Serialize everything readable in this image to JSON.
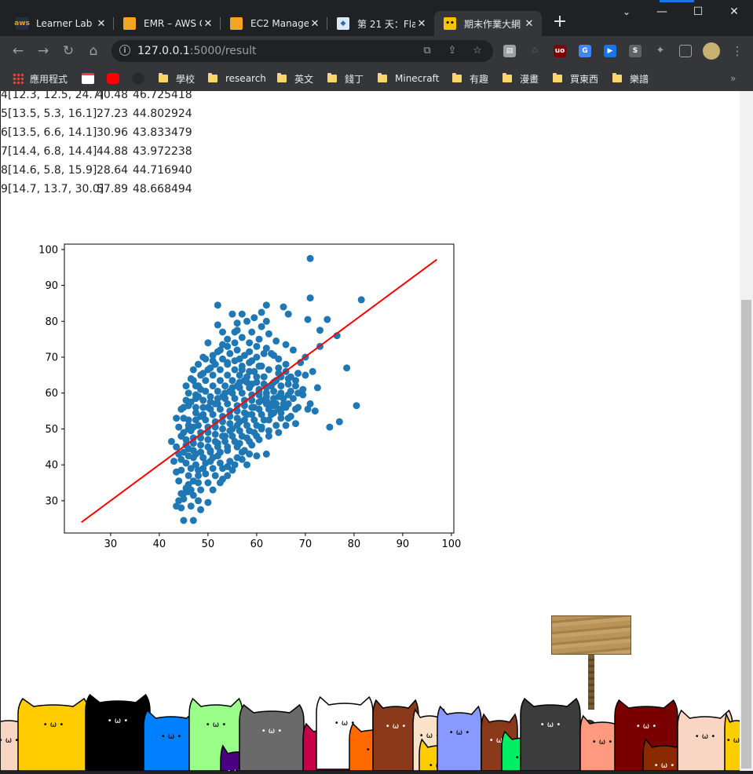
{
  "browser": {
    "tabs": [
      {
        "title": "Learner Lab",
        "icon": "aws-icon",
        "active": false
      },
      {
        "title": "EMR – AWS C",
        "icon": "box-icon",
        "active": false
      },
      {
        "title": "EC2 Manage",
        "icon": "box-icon",
        "active": false
      },
      {
        "title": "第 21 天：Fla",
        "icon": "flask-icon",
        "active": false
      },
      {
        "title": "期末作業大網",
        "icon": "folder-icon",
        "active": true
      }
    ],
    "new_tab": "+",
    "window": {
      "minimize": "—",
      "maximize": "☐",
      "close": "✕"
    },
    "address": {
      "host": "127.0.0.1",
      "path": ":5000/result"
    },
    "bookmarks": [
      {
        "label": "應用程式",
        "icon": "apps-grid-icon"
      },
      {
        "label": "",
        "icon": "gmail-icon"
      },
      {
        "label": "",
        "icon": "youtube-icon"
      },
      {
        "label": "",
        "icon": "github-icon"
      },
      {
        "label": "學校",
        "icon": "folder-icon"
      },
      {
        "label": "research",
        "icon": "folder-icon"
      },
      {
        "label": "英文",
        "icon": "folder-icon"
      },
      {
        "label": "錢丁",
        "icon": "folder-icon"
      },
      {
        "label": "Minecraft",
        "icon": "folder-icon"
      },
      {
        "label": "有趣",
        "icon": "folder-icon"
      },
      {
        "label": "漫畫",
        "icon": "folder-icon"
      },
      {
        "label": "買東西",
        "icon": "folder-icon"
      },
      {
        "label": "樂譜",
        "icon": "folder-icon"
      }
    ],
    "bookmarks_overflow": "»"
  },
  "table_rows": [
    {
      "idx": "4",
      "features": "[12.3, 12.5, 24.7]",
      "actual": "40.48",
      "pred": "46.725418"
    },
    {
      "idx": "5",
      "features": "[13.5, 5.3, 16.1]",
      "actual": "27.23",
      "pred": "44.802924"
    },
    {
      "idx": "6",
      "features": "[13.5, 6.6, 14.1]",
      "actual": "30.96",
      "pred": "43.833479"
    },
    {
      "idx": "7",
      "features": "[14.4, 6.8, 14.4]",
      "actual": "44.88",
      "pred": "43.972238"
    },
    {
      "idx": "8",
      "features": "[14.6, 5.8, 15.9]",
      "actual": "28.64",
      "pred": "44.716940"
    },
    {
      "idx": "9",
      "features": "[14.7, 13.7, 30.0]",
      "actual": "57.89",
      "pred": "48.668494"
    }
  ],
  "chart_data": {
    "type": "scatter",
    "xlim": [
      20.5,
      100.5
    ],
    "ylim": [
      21,
      101.5
    ],
    "xticks": [
      30,
      40,
      50,
      60,
      70,
      80,
      90,
      100
    ],
    "yticks": [
      30,
      40,
      50,
      60,
      70,
      80,
      90,
      100
    ],
    "grid": false,
    "point_color": "#1f77b4",
    "line_color": "#ff0000",
    "fit_line": {
      "x": [
        24,
        97
      ],
      "y": [
        24,
        97.2
      ]
    },
    "points": [
      [
        71,
        97.5
      ],
      [
        81.5,
        86
      ],
      [
        71,
        86.5
      ],
      [
        52,
        84.5
      ],
      [
        62,
        84.5
      ],
      [
        65.5,
        84
      ],
      [
        74.5,
        80.5
      ],
      [
        70.5,
        80.5
      ],
      [
        66.5,
        82
      ],
      [
        73,
        77.5
      ],
      [
        76.5,
        76
      ],
      [
        78.5,
        67
      ],
      [
        80.5,
        56.5
      ],
      [
        77,
        52
      ],
      [
        75,
        50.5
      ],
      [
        72.5,
        61.5
      ],
      [
        71.5,
        66
      ],
      [
        70,
        70
      ],
      [
        73,
        73
      ],
      [
        67,
        64.5
      ],
      [
        69.5,
        59.5
      ],
      [
        71,
        57
      ],
      [
        64.5,
        59
      ],
      [
        63,
        57
      ],
      [
        62,
        43
      ],
      [
        58,
        40
      ],
      [
        57,
        43.5
      ],
      [
        55,
        38.5
      ],
      [
        53,
        36
      ],
      [
        50,
        29.5
      ],
      [
        48.5,
        27.5
      ],
      [
        47,
        24.5
      ],
      [
        45,
        24.5
      ],
      [
        44.5,
        28
      ],
      [
        43.5,
        28.5
      ],
      [
        45,
        30.5
      ],
      [
        44.5,
        32
      ],
      [
        46,
        32.5
      ],
      [
        46,
        34.5
      ],
      [
        44.5,
        38.5
      ],
      [
        43.5,
        38
      ],
      [
        43,
        41
      ],
      [
        44,
        43
      ],
      [
        42.5,
        46.5
      ],
      [
        45,
        49
      ],
      [
        46,
        52.5
      ],
      [
        47.5,
        56
      ],
      [
        47.5,
        58.5
      ],
      [
        48.5,
        61
      ],
      [
        47.5,
        62
      ],
      [
        46.5,
        64
      ],
      [
        49,
        65.5
      ],
      [
        50.5,
        67
      ],
      [
        51,
        69
      ],
      [
        52,
        71.5
      ],
      [
        53,
        73.5
      ],
      [
        54,
        75
      ],
      [
        55.5,
        77
      ],
      [
        56,
        79.5
      ],
      [
        57,
        82
      ],
      [
        59.5,
        81
      ],
      [
        61,
        78.5
      ],
      [
        60.5,
        75
      ],
      [
        62,
        72.5
      ],
      [
        63.5,
        70.5
      ],
      [
        64.5,
        67
      ],
      [
        66,
        66
      ],
      [
        68,
        63.5
      ],
      [
        68.5,
        60
      ],
      [
        66,
        56
      ],
      [
        65,
        53
      ],
      [
        64,
        51
      ],
      [
        62.5,
        49.5
      ],
      [
        60,
        48
      ],
      [
        58.5,
        46.5
      ],
      [
        56,
        45
      ],
      [
        54,
        44
      ],
      [
        52,
        42.5
      ],
      [
        50.5,
        41
      ],
      [
        49,
        39
      ],
      [
        48,
        37
      ],
      [
        47,
        35.5
      ],
      [
        46,
        37
      ],
      [
        47.5,
        40
      ],
      [
        49,
        42
      ],
      [
        50.5,
        44
      ],
      [
        52,
        46
      ],
      [
        53.5,
        48
      ],
      [
        55,
        50
      ],
      [
        56.5,
        52
      ],
      [
        58,
        54
      ],
      [
        59.5,
        56
      ],
      [
        61,
        58
      ],
      [
        62,
        60
      ],
      [
        63,
        62
      ],
      [
        64,
        63.5
      ],
      [
        61.5,
        64.5
      ],
      [
        60,
        63
      ],
      [
        58.5,
        61.5
      ],
      [
        57,
        60
      ],
      [
        55.5,
        58.5
      ],
      [
        54,
        57
      ],
      [
        52.5,
        55.5
      ],
      [
        51,
        54
      ],
      [
        49.5,
        52.5
      ],
      [
        48,
        51
      ],
      [
        46.5,
        49.5
      ],
      [
        45.5,
        47
      ],
      [
        47,
        46
      ],
      [
        48.5,
        47.5
      ],
      [
        50,
        49
      ],
      [
        51.5,
        50.5
      ],
      [
        53,
        52
      ],
      [
        54.5,
        53.5
      ],
      [
        56,
        55
      ],
      [
        57.5,
        56.5
      ],
      [
        59,
        58
      ],
      [
        60.5,
        59.5
      ],
      [
        62,
        61.5
      ],
      [
        63.5,
        63
      ],
      [
        65,
        64.5
      ],
      [
        66.5,
        62.5
      ],
      [
        67,
        60.5
      ],
      [
        65.5,
        58.5
      ],
      [
        64,
        57
      ],
      [
        62.5,
        55.5
      ],
      [
        61,
        54
      ],
      [
        59.5,
        52.5
      ],
      [
        58,
        51
      ],
      [
        56.5,
        49.5
      ],
      [
        55,
        48
      ],
      [
        53.5,
        46.5
      ],
      [
        52,
        45
      ],
      [
        50.5,
        43.5
      ],
      [
        49,
        42
      ],
      [
        47.5,
        43
      ],
      [
        46,
        44.5
      ],
      [
        47,
        47.5
      ],
      [
        48.5,
        49
      ],
      [
        50,
        50.5
      ],
      [
        51.5,
        52
      ],
      [
        53,
        53.5
      ],
      [
        54.5,
        55
      ],
      [
        56,
        56.5
      ],
      [
        57.5,
        58
      ],
      [
        59,
        59.5
      ],
      [
        60.5,
        61
      ],
      [
        61.5,
        62.5
      ],
      [
        60,
        64.5
      ],
      [
        58.5,
        66
      ],
      [
        57,
        67.5
      ],
      [
        55.5,
        69
      ],
      [
        54,
        68
      ],
      [
        52.5,
        66.5
      ],
      [
        51,
        65
      ],
      [
        49.5,
        63.5
      ],
      [
        48,
        62
      ],
      [
        47.5,
        59.5
      ],
      [
        49,
        58
      ],
      [
        50.5,
        59
      ],
      [
        52,
        60.5
      ],
      [
        53.5,
        62
      ],
      [
        55,
        63.5
      ],
      [
        56.5,
        65
      ],
      [
        58,
        63
      ],
      [
        56.5,
        61.5
      ],
      [
        55,
        60
      ],
      [
        53.5,
        58.5
      ],
      [
        52,
        57
      ],
      [
        50.5,
        55.5
      ],
      [
        49,
        54
      ],
      [
        47.5,
        52.5
      ],
      [
        46,
        51
      ],
      [
        45,
        53
      ],
      [
        44.5,
        55.5
      ],
      [
        46,
        56.5
      ],
      [
        47.5,
        54.5
      ],
      [
        49,
        56
      ],
      [
        50.5,
        57.5
      ],
      [
        52,
        58.5
      ],
      [
        53.5,
        60
      ],
      [
        55,
        61.5
      ],
      [
        56.5,
        63
      ],
      [
        58,
        64.5
      ],
      [
        59.5,
        66
      ],
      [
        61,
        67.5
      ],
      [
        59,
        69
      ],
      [
        57.5,
        70.5
      ],
      [
        56,
        72
      ],
      [
        54.5,
        71
      ],
      [
        53,
        69.5
      ],
      [
        51.5,
        68
      ],
      [
        50,
        66.5
      ],
      [
        48.5,
        65
      ],
      [
        47,
        63.5
      ],
      [
        45.5,
        62
      ],
      [
        46,
        60
      ],
      [
        45.5,
        58
      ],
      [
        44,
        50.5
      ],
      [
        43.5,
        45
      ],
      [
        44,
        35.5
      ],
      [
        45.5,
        33.5
      ],
      [
        47,
        31.5
      ],
      [
        48.5,
        33
      ],
      [
        50,
        35
      ],
      [
        51.5,
        37
      ],
      [
        53,
        39
      ],
      [
        54.5,
        41
      ],
      [
        56,
        42
      ],
      [
        57.5,
        44
      ],
      [
        59,
        45.5
      ],
      [
        60.5,
        47
      ],
      [
        61,
        50.5
      ],
      [
        62.5,
        52.5
      ],
      [
        63.5,
        54.5
      ],
      [
        65,
        55.5
      ],
      [
        66.5,
        57
      ],
      [
        67.5,
        58.5
      ],
      [
        68,
        62
      ],
      [
        66,
        68
      ],
      [
        64.5,
        69.5
      ],
      [
        63,
        71
      ],
      [
        61.5,
        71
      ],
      [
        60,
        70
      ],
      [
        58.5,
        68.5
      ],
      [
        57,
        66.5
      ],
      [
        55.5,
        66.5
      ],
      [
        54,
        65
      ],
      [
        52.5,
        63.5
      ],
      [
        51,
        62
      ],
      [
        49.5,
        60.5
      ],
      [
        48,
        59
      ],
      [
        46.5,
        57.5
      ],
      [
        45,
        56
      ],
      [
        43.5,
        53
      ],
      [
        44.5,
        48
      ],
      [
        45.5,
        45.5
      ],
      [
        47,
        44
      ],
      [
        48.5,
        45.5
      ],
      [
        50,
        47
      ],
      [
        51.5,
        48.5
      ],
      [
        53,
        50
      ],
      [
        54.5,
        51.5
      ],
      [
        56,
        53
      ],
      [
        57.5,
        54.5
      ],
      [
        59,
        56
      ],
      [
        60.5,
        57.5
      ],
      [
        62,
        59
      ],
      [
        63.5,
        60.5
      ],
      [
        65,
        62
      ],
      [
        66.5,
        64
      ],
      [
        68.5,
        65.5
      ],
      [
        70,
        65
      ],
      [
        64,
        74.5
      ],
      [
        62.5,
        76.5
      ],
      [
        60,
        73
      ],
      [
        58.5,
        74
      ],
      [
        57,
        75.5
      ],
      [
        55.5,
        74
      ],
      [
        54,
        73
      ],
      [
        52.5,
        72
      ],
      [
        51,
        70.5
      ],
      [
        49.5,
        69.5
      ],
      [
        48,
        68
      ],
      [
        47,
        66.5
      ],
      [
        66,
        73.5
      ],
      [
        67.5,
        72
      ],
      [
        69,
        68.5
      ],
      [
        70.5,
        55.5
      ],
      [
        72,
        55
      ],
      [
        68.5,
        56
      ],
      [
        60,
        42.5
      ],
      [
        58.5,
        43
      ],
      [
        57,
        41.5
      ],
      [
        55.5,
        40
      ],
      [
        54,
        39.5
      ],
      [
        52.5,
        40.5
      ],
      [
        51,
        39
      ],
      [
        49.5,
        37.5
      ],
      [
        48,
        35
      ],
      [
        46.5,
        33
      ],
      [
        45,
        32
      ],
      [
        44,
        30
      ],
      [
        46.5,
        28.5
      ],
      [
        48,
        30
      ],
      [
        51,
        33
      ],
      [
        52.5,
        35
      ],
      [
        54,
        37
      ],
      [
        56.5,
        46
      ],
      [
        58,
        47.5
      ],
      [
        59.5,
        49
      ],
      [
        61,
        50
      ],
      [
        62.5,
        48
      ],
      [
        64.5,
        49
      ],
      [
        66,
        51
      ],
      [
        67,
        53.5
      ],
      [
        68,
        55.5
      ],
      [
        66.5,
        59.5
      ],
      [
        65,
        60
      ],
      [
        63.5,
        58.5
      ],
      [
        62,
        57
      ],
      [
        60.5,
        55.5
      ],
      [
        59,
        54
      ],
      [
        57.5,
        52.5
      ],
      [
        56,
        51
      ],
      [
        54.5,
        49.5
      ],
      [
        53,
        48
      ],
      [
        51.5,
        46.5
      ],
      [
        50,
        45
      ],
      [
        48.5,
        43.5
      ],
      [
        47,
        42
      ],
      [
        45.5,
        40.5
      ],
      [
        44.5,
        41.5
      ],
      [
        45,
        43.5
      ],
      [
        46,
        42.5
      ],
      [
        46.5,
        39
      ],
      [
        48,
        38.5
      ],
      [
        49.5,
        40.5
      ],
      [
        51,
        42
      ],
      [
        52.5,
        43.5
      ],
      [
        54,
        45
      ],
      [
        55.5,
        46.5
      ],
      [
        57,
        48
      ],
      [
        58.5,
        49.5
      ],
      [
        60,
        51
      ],
      [
        61.5,
        52.5
      ],
      [
        63,
        54
      ],
      [
        64.5,
        55.5
      ],
      [
        65.5,
        57
      ],
      [
        52,
        79
      ],
      [
        55,
        82
      ],
      [
        58,
        80
      ],
      [
        61,
        82.5
      ],
      [
        49,
        70
      ],
      [
        50,
        74
      ],
      [
        53,
        77
      ],
      [
        56,
        77.5
      ],
      [
        59,
        77
      ],
      [
        62,
        80
      ],
      [
        54,
        68.5
      ],
      [
        56.5,
        69.5
      ],
      [
        58.5,
        71.5
      ],
      [
        60.5,
        67.5
      ],
      [
        62.5,
        66.5
      ],
      [
        64.5,
        65.5
      ],
      [
        46,
        50
      ],
      [
        47,
        50.5
      ],
      [
        48.5,
        53.5
      ],
      [
        50,
        56
      ],
      [
        51.5,
        57
      ],
      [
        53,
        59
      ],
      [
        54.5,
        60.5
      ],
      [
        56,
        62
      ],
      [
        57.5,
        63.5
      ],
      [
        59,
        62.5
      ],
      [
        60.5,
        60.5
      ],
      [
        62,
        58
      ],
      [
        63.5,
        56.5
      ],
      [
        65,
        54.5
      ],
      [
        66.5,
        53
      ],
      [
        68,
        51.5
      ],
      [
        69.5,
        61
      ]
    ]
  },
  "colors": {
    "chrome_dark": "#202124",
    "chrome_toolbar": "#35363a",
    "page_bg": "#ffffff",
    "scatter": "#1f77b4",
    "fit_line": "#ff0000"
  },
  "decor": {
    "cats": [
      {
        "color": "#f9d5c4"
      },
      {
        "color": "#ffcc00"
      },
      {
        "color": "#000000"
      },
      {
        "color": "#0080ff"
      },
      {
        "color": "#99ff88"
      },
      {
        "color": "#4b0082"
      },
      {
        "color": "#6a6a6a"
      },
      {
        "color": "#c8004a"
      },
      {
        "color": "#ffffff"
      },
      {
        "color": "#ff6a00"
      },
      {
        "color": "#8a3a1a"
      },
      {
        "color": "#fae2c8"
      },
      {
        "color": "#ffcc00"
      },
      {
        "color": "#8899ff"
      },
      {
        "color": "#8a3a1a"
      },
      {
        "color": "#00ee66"
      },
      {
        "color": "#3c3c3c"
      },
      {
        "color": "#ff9a80"
      },
      {
        "color": "#7a0000"
      },
      {
        "color": "#8a2a00"
      },
      {
        "color": "#f9d5c4"
      },
      {
        "color": "#ffcc00"
      }
    ],
    "sign_color": "#b08a4e"
  }
}
